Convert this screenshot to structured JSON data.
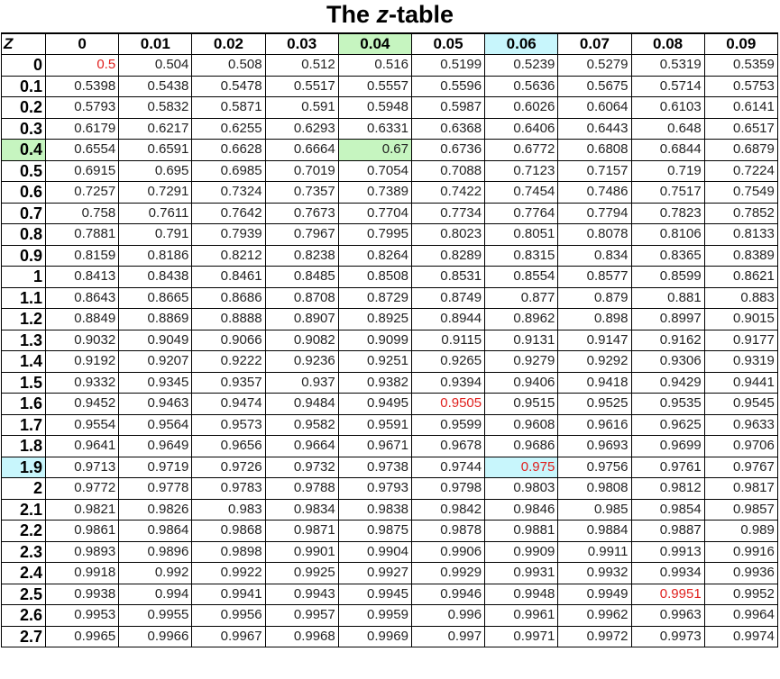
{
  "title": {
    "prefix": "The",
    "variable": "z",
    "suffix": "-table"
  },
  "colors": {
    "green_highlight": "#c6f5c0",
    "cyan_highlight": "#c8f6fc",
    "red_value": "#e0201e"
  },
  "table": {
    "corner_label": "Z",
    "columns": [
      "0",
      "0.01",
      "0.02",
      "0.03",
      "0.04",
      "0.05",
      "0.06",
      "0.07",
      "0.08",
      "0.09"
    ],
    "rows": [
      {
        "z": "0",
        "values": [
          "0.5",
          "0.504",
          "0.508",
          "0.512",
          "0.516",
          "0.5199",
          "0.5239",
          "0.5279",
          "0.5319",
          "0.5359"
        ]
      },
      {
        "z": "0.1",
        "values": [
          "0.5398",
          "0.5438",
          "0.5478",
          "0.5517",
          "0.5557",
          "0.5596",
          "0.5636",
          "0.5675",
          "0.5714",
          "0.5753"
        ]
      },
      {
        "z": "0.2",
        "values": [
          "0.5793",
          "0.5832",
          "0.5871",
          "0.591",
          "0.5948",
          "0.5987",
          "0.6026",
          "0.6064",
          "0.6103",
          "0.6141"
        ]
      },
      {
        "z": "0.3",
        "values": [
          "0.6179",
          "0.6217",
          "0.6255",
          "0.6293",
          "0.6331",
          "0.6368",
          "0.6406",
          "0.6443",
          "0.648",
          "0.6517"
        ]
      },
      {
        "z": "0.4",
        "values": [
          "0.6554",
          "0.6591",
          "0.6628",
          "0.6664",
          "0.67",
          "0.6736",
          "0.6772",
          "0.6808",
          "0.6844",
          "0.6879"
        ]
      },
      {
        "z": "0.5",
        "values": [
          "0.6915",
          "0.695",
          "0.6985",
          "0.7019",
          "0.7054",
          "0.7088",
          "0.7123",
          "0.7157",
          "0.719",
          "0.7224"
        ]
      },
      {
        "z": "0.6",
        "values": [
          "0.7257",
          "0.7291",
          "0.7324",
          "0.7357",
          "0.7389",
          "0.7422",
          "0.7454",
          "0.7486",
          "0.7517",
          "0.7549"
        ]
      },
      {
        "z": "0.7",
        "values": [
          "0.758",
          "0.7611",
          "0.7642",
          "0.7673",
          "0.7704",
          "0.7734",
          "0.7764",
          "0.7794",
          "0.7823",
          "0.7852"
        ]
      },
      {
        "z": "0.8",
        "values": [
          "0.7881",
          "0.791",
          "0.7939",
          "0.7967",
          "0.7995",
          "0.8023",
          "0.8051",
          "0.8078",
          "0.8106",
          "0.8133"
        ]
      },
      {
        "z": "0.9",
        "values": [
          "0.8159",
          "0.8186",
          "0.8212",
          "0.8238",
          "0.8264",
          "0.8289",
          "0.8315",
          "0.834",
          "0.8365",
          "0.8389"
        ]
      },
      {
        "z": "1",
        "values": [
          "0.8413",
          "0.8438",
          "0.8461",
          "0.8485",
          "0.8508",
          "0.8531",
          "0.8554",
          "0.8577",
          "0.8599",
          "0.8621"
        ]
      },
      {
        "z": "1.1",
        "values": [
          "0.8643",
          "0.8665",
          "0.8686",
          "0.8708",
          "0.8729",
          "0.8749",
          "0.877",
          "0.879",
          "0.881",
          "0.883"
        ]
      },
      {
        "z": "1.2",
        "values": [
          "0.8849",
          "0.8869",
          "0.8888",
          "0.8907",
          "0.8925",
          "0.8944",
          "0.8962",
          "0.898",
          "0.8997",
          "0.9015"
        ]
      },
      {
        "z": "1.3",
        "values": [
          "0.9032",
          "0.9049",
          "0.9066",
          "0.9082",
          "0.9099",
          "0.9115",
          "0.9131",
          "0.9147",
          "0.9162",
          "0.9177"
        ]
      },
      {
        "z": "1.4",
        "values": [
          "0.9192",
          "0.9207",
          "0.9222",
          "0.9236",
          "0.9251",
          "0.9265",
          "0.9279",
          "0.9292",
          "0.9306",
          "0.9319"
        ]
      },
      {
        "z": "1.5",
        "values": [
          "0.9332",
          "0.9345",
          "0.9357",
          "0.937",
          "0.9382",
          "0.9394",
          "0.9406",
          "0.9418",
          "0.9429",
          "0.9441"
        ]
      },
      {
        "z": "1.6",
        "values": [
          "0.9452",
          "0.9463",
          "0.9474",
          "0.9484",
          "0.9495",
          "0.9505",
          "0.9515",
          "0.9525",
          "0.9535",
          "0.9545"
        ]
      },
      {
        "z": "1.7",
        "values": [
          "0.9554",
          "0.9564",
          "0.9573",
          "0.9582",
          "0.9591",
          "0.9599",
          "0.9608",
          "0.9616",
          "0.9625",
          "0.9633"
        ]
      },
      {
        "z": "1.8",
        "values": [
          "0.9641",
          "0.9649",
          "0.9656",
          "0.9664",
          "0.9671",
          "0.9678",
          "0.9686",
          "0.9693",
          "0.9699",
          "0.9706"
        ]
      },
      {
        "z": "1.9",
        "values": [
          "0.9713",
          "0.9719",
          "0.9726",
          "0.9732",
          "0.9738",
          "0.9744",
          "0.975",
          "0.9756",
          "0.9761",
          "0.9767"
        ]
      },
      {
        "z": "2",
        "values": [
          "0.9772",
          "0.9778",
          "0.9783",
          "0.9788",
          "0.9793",
          "0.9798",
          "0.9803",
          "0.9808",
          "0.9812",
          "0.9817"
        ]
      },
      {
        "z": "2.1",
        "values": [
          "0.9821",
          "0.9826",
          "0.983",
          "0.9834",
          "0.9838",
          "0.9842",
          "0.9846",
          "0.985",
          "0.9854",
          "0.9857"
        ]
      },
      {
        "z": "2.2",
        "values": [
          "0.9861",
          "0.9864",
          "0.9868",
          "0.9871",
          "0.9875",
          "0.9878",
          "0.9881",
          "0.9884",
          "0.9887",
          "0.989"
        ]
      },
      {
        "z": "2.3",
        "values": [
          "0.9893",
          "0.9896",
          "0.9898",
          "0.9901",
          "0.9904",
          "0.9906",
          "0.9909",
          "0.9911",
          "0.9913",
          "0.9916"
        ]
      },
      {
        "z": "2.4",
        "values": [
          "0.9918",
          "0.992",
          "0.9922",
          "0.9925",
          "0.9927",
          "0.9929",
          "0.9931",
          "0.9932",
          "0.9934",
          "0.9936"
        ]
      },
      {
        "z": "2.5",
        "values": [
          "0.9938",
          "0.994",
          "0.9941",
          "0.9943",
          "0.9945",
          "0.9946",
          "0.9948",
          "0.9949",
          "0.9951",
          "0.9952"
        ]
      },
      {
        "z": "2.6",
        "values": [
          "0.9953",
          "0.9955",
          "0.9956",
          "0.9957",
          "0.9959",
          "0.996",
          "0.9961",
          "0.9962",
          "0.9963",
          "0.9964"
        ]
      },
      {
        "z": "2.7",
        "values": [
          "0.9965",
          "0.9966",
          "0.9967",
          "0.9968",
          "0.9969",
          "0.997",
          "0.9971",
          "0.9972",
          "0.9973",
          "0.9974"
        ]
      }
    ],
    "highlights": {
      "green_row": 4,
      "green_col": 4,
      "cyan_row": 19,
      "cyan_col": 6
    },
    "red_cells": [
      {
        "row": 0,
        "col": 0
      },
      {
        "row": 16,
        "col": 5
      },
      {
        "row": 19,
        "col": 6
      },
      {
        "row": 25,
        "col": 8
      }
    ]
  }
}
